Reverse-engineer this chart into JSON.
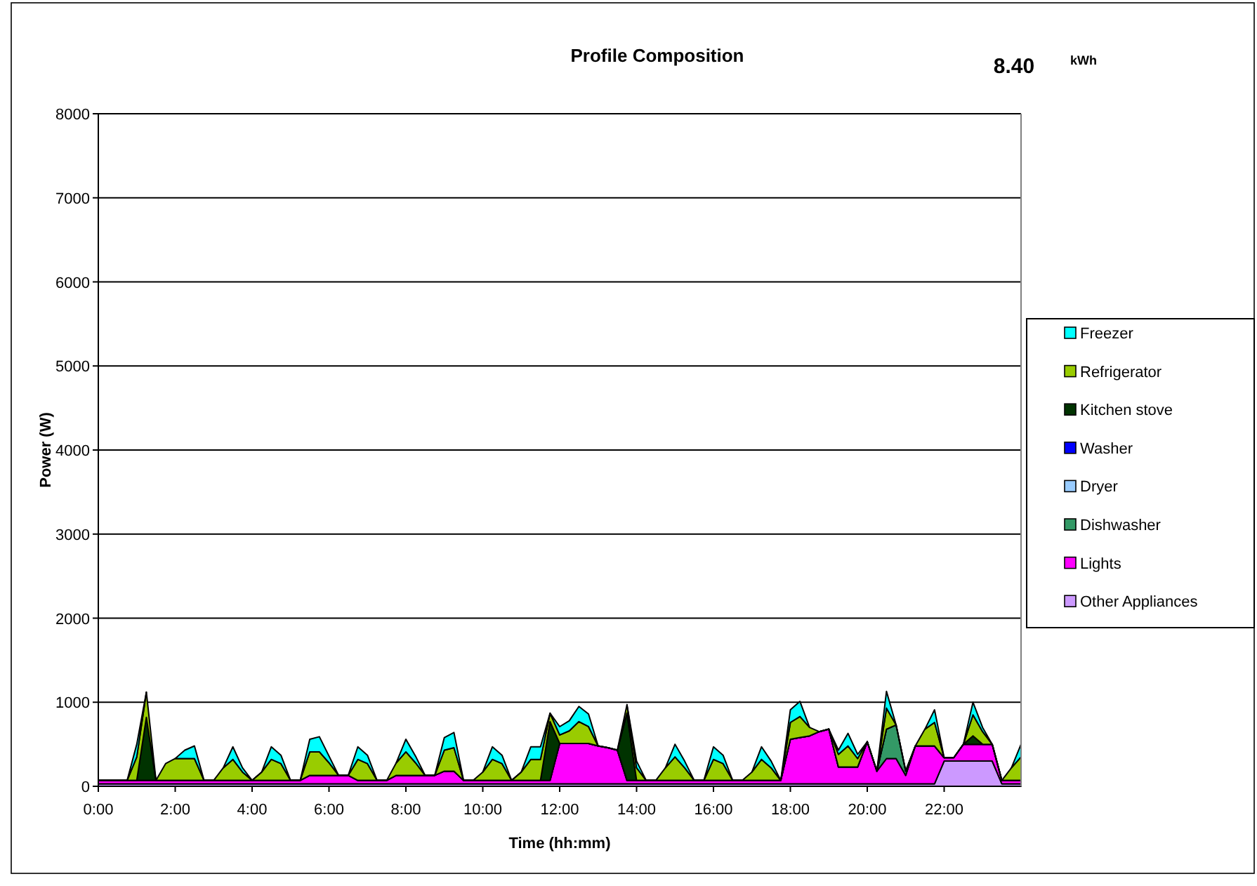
{
  "chart_data": {
    "type": "area",
    "stacked": true,
    "title": "Profile Composition",
    "annotations": [
      "8.40",
      "kWh"
    ],
    "xlabel": "Time (hh:mm)",
    "ylabel": "Power (W)",
    "x": [
      0,
      0.25,
      0.5,
      0.75,
      1,
      1.25,
      1.5,
      1.75,
      2,
      2.25,
      2.5,
      2.75,
      3,
      3.25,
      3.5,
      3.75,
      4,
      4.25,
      4.5,
      4.75,
      5,
      5.25,
      5.5,
      5.75,
      6,
      6.25,
      6.5,
      6.75,
      7,
      7.25,
      7.5,
      7.75,
      8,
      8.25,
      8.5,
      8.75,
      9,
      9.25,
      9.5,
      9.75,
      10,
      10.25,
      10.5,
      10.75,
      11,
      11.25,
      11.5,
      11.75,
      12,
      12.25,
      12.5,
      12.75,
      13,
      13.25,
      13.5,
      13.75,
      14,
      14.25,
      14.5,
      14.75,
      15,
      15.25,
      15.5,
      15.75,
      16,
      16.25,
      16.5,
      16.75,
      17,
      17.25,
      17.5,
      17.75,
      18,
      18.25,
      18.5,
      18.75,
      19,
      19.25,
      19.5,
      19.75,
      20,
      20.25,
      20.5,
      20.75,
      21,
      21.25,
      21.5,
      21.75,
      22,
      22.25,
      22.5,
      22.75,
      23,
      23.25,
      23.5,
      23.75,
      24
    ],
    "xlim": [
      0,
      24
    ],
    "xticks": [
      {
        "value": 0,
        "label": "0:00"
      },
      {
        "value": 2,
        "label": "2:00"
      },
      {
        "value": 4,
        "label": "4:00"
      },
      {
        "value": 6,
        "label": "6:00"
      },
      {
        "value": 8,
        "label": "8:00"
      },
      {
        "value": 10,
        "label": "10:00"
      },
      {
        "value": 12,
        "label": "12:00"
      },
      {
        "value": 14,
        "label": "14:00"
      },
      {
        "value": 16,
        "label": "16:00"
      },
      {
        "value": 18,
        "label": "18:00"
      },
      {
        "value": 20,
        "label": "20:00"
      },
      {
        "value": 22,
        "label": "22:00"
      }
    ],
    "ylim": [
      0,
      8000
    ],
    "yticks": [
      0,
      1000,
      2000,
      3000,
      4000,
      5000,
      6000,
      7000,
      8000
    ],
    "grid": "y",
    "legend": "right",
    "series": [
      {
        "name": "Other Appliances",
        "color": "#cc99ff",
        "values": [
          30,
          30,
          30,
          30,
          30,
          30,
          30,
          30,
          30,
          30,
          30,
          30,
          30,
          30,
          30,
          30,
          30,
          30,
          30,
          30,
          30,
          30,
          30,
          30,
          30,
          30,
          30,
          30,
          30,
          30,
          30,
          30,
          30,
          30,
          30,
          30,
          30,
          30,
          30,
          30,
          30,
          30,
          30,
          30,
          30,
          30,
          30,
          30,
          30,
          30,
          30,
          30,
          30,
          30,
          30,
          30,
          30,
          30,
          30,
          30,
          30,
          30,
          30,
          30,
          30,
          30,
          30,
          30,
          30,
          30,
          30,
          30,
          30,
          30,
          30,
          30,
          30,
          30,
          30,
          30,
          30,
          30,
          30,
          30,
          30,
          30,
          30,
          30,
          300,
          300,
          300,
          300,
          300,
          300,
          30,
          30,
          30
        ]
      },
      {
        "name": "Lights",
        "color": "#ff00ff",
        "values": [
          40,
          40,
          40,
          40,
          40,
          40,
          40,
          40,
          40,
          40,
          40,
          40,
          40,
          40,
          40,
          40,
          40,
          40,
          40,
          40,
          40,
          40,
          100,
          100,
          100,
          100,
          100,
          40,
          40,
          40,
          40,
          100,
          100,
          100,
          100,
          100,
          150,
          150,
          40,
          40,
          40,
          40,
          40,
          40,
          40,
          40,
          40,
          40,
          480,
          480,
          480,
          480,
          450,
          430,
          400,
          40,
          40,
          40,
          40,
          40,
          40,
          40,
          40,
          40,
          40,
          40,
          40,
          40,
          40,
          40,
          40,
          40,
          530,
          550,
          570,
          620,
          650,
          200,
          200,
          200,
          500,
          150,
          300,
          300,
          100,
          450,
          450,
          450,
          40,
          40,
          200,
          200,
          200,
          200,
          40,
          40,
          40
        ]
      },
      {
        "name": "Dishwasher",
        "color": "#339966",
        "values": [
          0,
          0,
          0,
          0,
          0,
          0,
          0,
          0,
          0,
          0,
          0,
          0,
          0,
          0,
          0,
          0,
          0,
          0,
          0,
          0,
          0,
          0,
          0,
          0,
          0,
          0,
          0,
          0,
          0,
          0,
          0,
          0,
          0,
          0,
          0,
          0,
          0,
          0,
          0,
          0,
          0,
          0,
          0,
          0,
          0,
          0,
          0,
          0,
          0,
          0,
          0,
          0,
          0,
          0,
          0,
          0,
          0,
          0,
          0,
          0,
          0,
          0,
          0,
          0,
          0,
          0,
          0,
          0,
          0,
          0,
          0,
          0,
          0,
          0,
          0,
          0,
          0,
          0,
          0,
          0,
          0,
          0,
          350,
          400,
          50,
          0,
          0,
          0,
          0,
          0,
          0,
          0,
          0,
          0,
          0,
          0,
          0
        ]
      },
      {
        "name": "Dryer",
        "color": "#99ccff",
        "values": [
          null,
          null,
          null,
          null,
          null,
          null,
          null,
          null,
          null,
          null,
          null,
          null,
          null,
          null,
          null,
          null,
          null,
          null,
          null,
          null,
          null,
          null,
          null,
          null,
          null,
          null,
          null,
          null,
          null,
          null,
          null,
          null,
          null,
          null,
          null,
          null,
          null,
          null,
          null,
          null,
          null,
          null,
          null,
          null,
          null,
          null,
          null,
          null,
          null,
          null,
          null,
          null,
          null,
          null,
          null,
          null,
          null,
          null,
          null,
          null,
          null,
          null,
          null,
          null,
          null,
          null,
          null,
          null,
          null,
          null,
          null,
          null,
          null,
          null,
          null,
          null,
          null,
          null,
          null,
          null,
          null,
          null,
          null,
          null,
          null,
          null,
          null,
          null,
          null,
          null,
          null,
          null,
          null,
          null,
          null,
          null,
          null
        ]
      },
      {
        "name": "Washer",
        "color": "#0000ff",
        "values": [
          null,
          null,
          null,
          null,
          null,
          null,
          null,
          null,
          null,
          null,
          null,
          null,
          null,
          null,
          null,
          null,
          null,
          null,
          null,
          null,
          null,
          null,
          null,
          null,
          null,
          null,
          null,
          null,
          null,
          null,
          null,
          null,
          null,
          null,
          null,
          null,
          null,
          null,
          null,
          null,
          null,
          null,
          null,
          null,
          null,
          null,
          null,
          null,
          null,
          null,
          null,
          null,
          null,
          null,
          null,
          null,
          null,
          null,
          null,
          null,
          null,
          null,
          null,
          null,
          null,
          null,
          null,
          null,
          null,
          null,
          null,
          null,
          null,
          null,
          null,
          null,
          null,
          null,
          null,
          null,
          null,
          null,
          null,
          null,
          null,
          null,
          null,
          null,
          null,
          null,
          null,
          null,
          null,
          null,
          null,
          null,
          null
        ]
      },
      {
        "name": "Kitchen stove",
        "color": "#003300",
        "values": [
          0,
          0,
          0,
          0,
          0,
          750,
          0,
          0,
          0,
          0,
          0,
          0,
          0,
          0,
          0,
          0,
          0,
          0,
          0,
          0,
          0,
          0,
          0,
          0,
          0,
          0,
          0,
          0,
          0,
          0,
          0,
          0,
          0,
          0,
          0,
          0,
          0,
          0,
          0,
          0,
          0,
          0,
          0,
          0,
          0,
          0,
          0,
          700,
          0,
          0,
          0,
          0,
          0,
          0,
          0,
          800,
          0,
          0,
          0,
          0,
          0,
          0,
          0,
          0,
          0,
          0,
          0,
          0,
          0,
          0,
          0,
          0,
          0,
          0,
          0,
          0,
          0,
          0,
          0,
          0,
          0,
          0,
          0,
          0,
          0,
          0,
          0,
          0,
          0,
          0,
          0,
          100,
          0,
          0,
          0,
          0,
          0
        ]
      },
      {
        "name": "Refrigerator",
        "color": "#99cc00",
        "values": [
          0,
          0,
          0,
          0,
          280,
          300,
          0,
          200,
          260,
          260,
          260,
          0,
          0,
          150,
          250,
          100,
          0,
          100,
          250,
          200,
          0,
          0,
          280,
          280,
          150,
          0,
          0,
          250,
          200,
          0,
          0,
          150,
          280,
          150,
          0,
          0,
          250,
          280,
          0,
          0,
          100,
          250,
          200,
          0,
          100,
          250,
          250,
          100,
          100,
          150,
          260,
          200,
          0,
          0,
          0,
          100,
          150,
          0,
          0,
          150,
          280,
          150,
          0,
          0,
          250,
          200,
          0,
          0,
          100,
          250,
          150,
          0,
          200,
          250,
          100,
          0,
          0,
          150,
          250,
          100,
          0,
          0,
          250,
          0,
          0,
          0,
          200,
          280,
          0,
          0,
          0,
          250,
          150,
          0,
          0,
          150,
          280
        ]
      },
      {
        "name": "Freezer",
        "color": "#00ffff",
        "values": [
          null,
          null,
          null,
          0,
          150,
          0,
          null,
          null,
          0,
          100,
          150,
          0,
          null,
          0,
          150,
          50,
          0,
          0,
          150,
          100,
          0,
          0,
          150,
          180,
          80,
          0,
          0,
          150,
          100,
          0,
          null,
          0,
          150,
          80,
          0,
          0,
          150,
          180,
          0,
          null,
          0,
          150,
          100,
          0,
          0,
          150,
          150,
          0,
          100,
          120,
          180,
          150,
          0,
          null,
          null,
          0,
          80,
          0,
          null,
          0,
          150,
          80,
          0,
          0,
          150,
          100,
          0,
          null,
          0,
          150,
          80,
          0,
          150,
          180,
          0,
          null,
          0,
          50,
          150,
          50,
          0,
          0,
          200,
          0,
          null,
          null,
          0,
          150,
          0,
          null,
          0,
          150,
          50,
          0,
          null,
          0,
          150
        ]
      }
    ]
  }
}
